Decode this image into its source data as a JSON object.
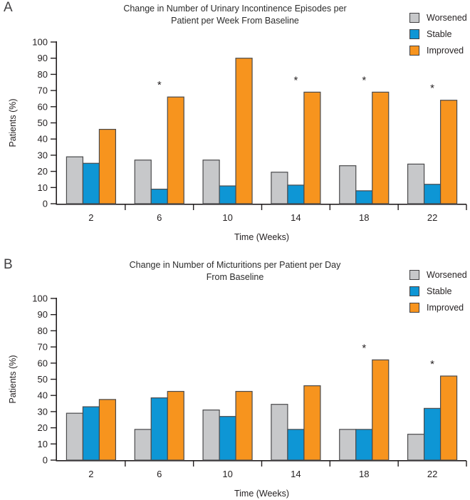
{
  "chart_data": [
    {
      "type": "bar",
      "panel_label": "A",
      "title": "Change in Number of Urinary Incontinence Episodes per Patient per Week From Baseline",
      "title_lines": [
        "Change in Number of Urinary Incontinence Episodes per",
        "Patient per Week From Baseline"
      ],
      "xlabel": "Time (Weeks)",
      "ylabel": "Patients (%)",
      "ylim": [
        0,
        100
      ],
      "ytick_step": 10,
      "grid": false,
      "legend_position": "top-right",
      "asterisk_symbol": "*",
      "categories": [
        "2",
        "6",
        "10",
        "14",
        "18",
        "22"
      ],
      "series": [
        {
          "name": "Worsened",
          "color": "#C7C8CA",
          "values": [
            29,
            27,
            27,
            19.5,
            23.5,
            24.5
          ]
        },
        {
          "name": "Stable",
          "color": "#0E96D5",
          "values": [
            25,
            9,
            11,
            11.5,
            8,
            12
          ]
        },
        {
          "name": "Improved",
          "color": "#F7941E",
          "values": [
            46,
            66,
            90,
            69,
            69,
            64
          ]
        }
      ],
      "significance_asterisks": [
        false,
        true,
        false,
        true,
        true,
        true
      ]
    },
    {
      "type": "bar",
      "panel_label": "B",
      "title": "Change in Number of Micturitions per Patient per Day From Baseline",
      "title_lines": [
        "Change in Number of Micturitions per Patient per Day",
        "From Baseline"
      ],
      "xlabel": "Time (Weeks)",
      "ylabel": "Patients (%)",
      "ylim": [
        0,
        100
      ],
      "ytick_step": 10,
      "grid": false,
      "legend_position": "top-right",
      "asterisk_symbol": "*",
      "categories": [
        "2",
        "6",
        "10",
        "14",
        "18",
        "22"
      ],
      "series": [
        {
          "name": "Worsened",
          "color": "#C7C8CA",
          "values": [
            29,
            19,
            31,
            34.5,
            19,
            16
          ]
        },
        {
          "name": "Stable",
          "color": "#0E96D5",
          "values": [
            33,
            38.5,
            27,
            19,
            19,
            32
          ]
        },
        {
          "name": "Improved",
          "color": "#F7941E",
          "values": [
            37.5,
            42.5,
            42.5,
            46,
            62,
            52
          ]
        }
      ],
      "significance_asterisks": [
        false,
        false,
        false,
        false,
        true,
        true
      ]
    }
  ],
  "colors": {
    "axis": "#231F20",
    "bar_outline": "#4A4A4C",
    "worsened": "#C7C8CA",
    "stable": "#0E96D5",
    "improved": "#F7941E"
  }
}
